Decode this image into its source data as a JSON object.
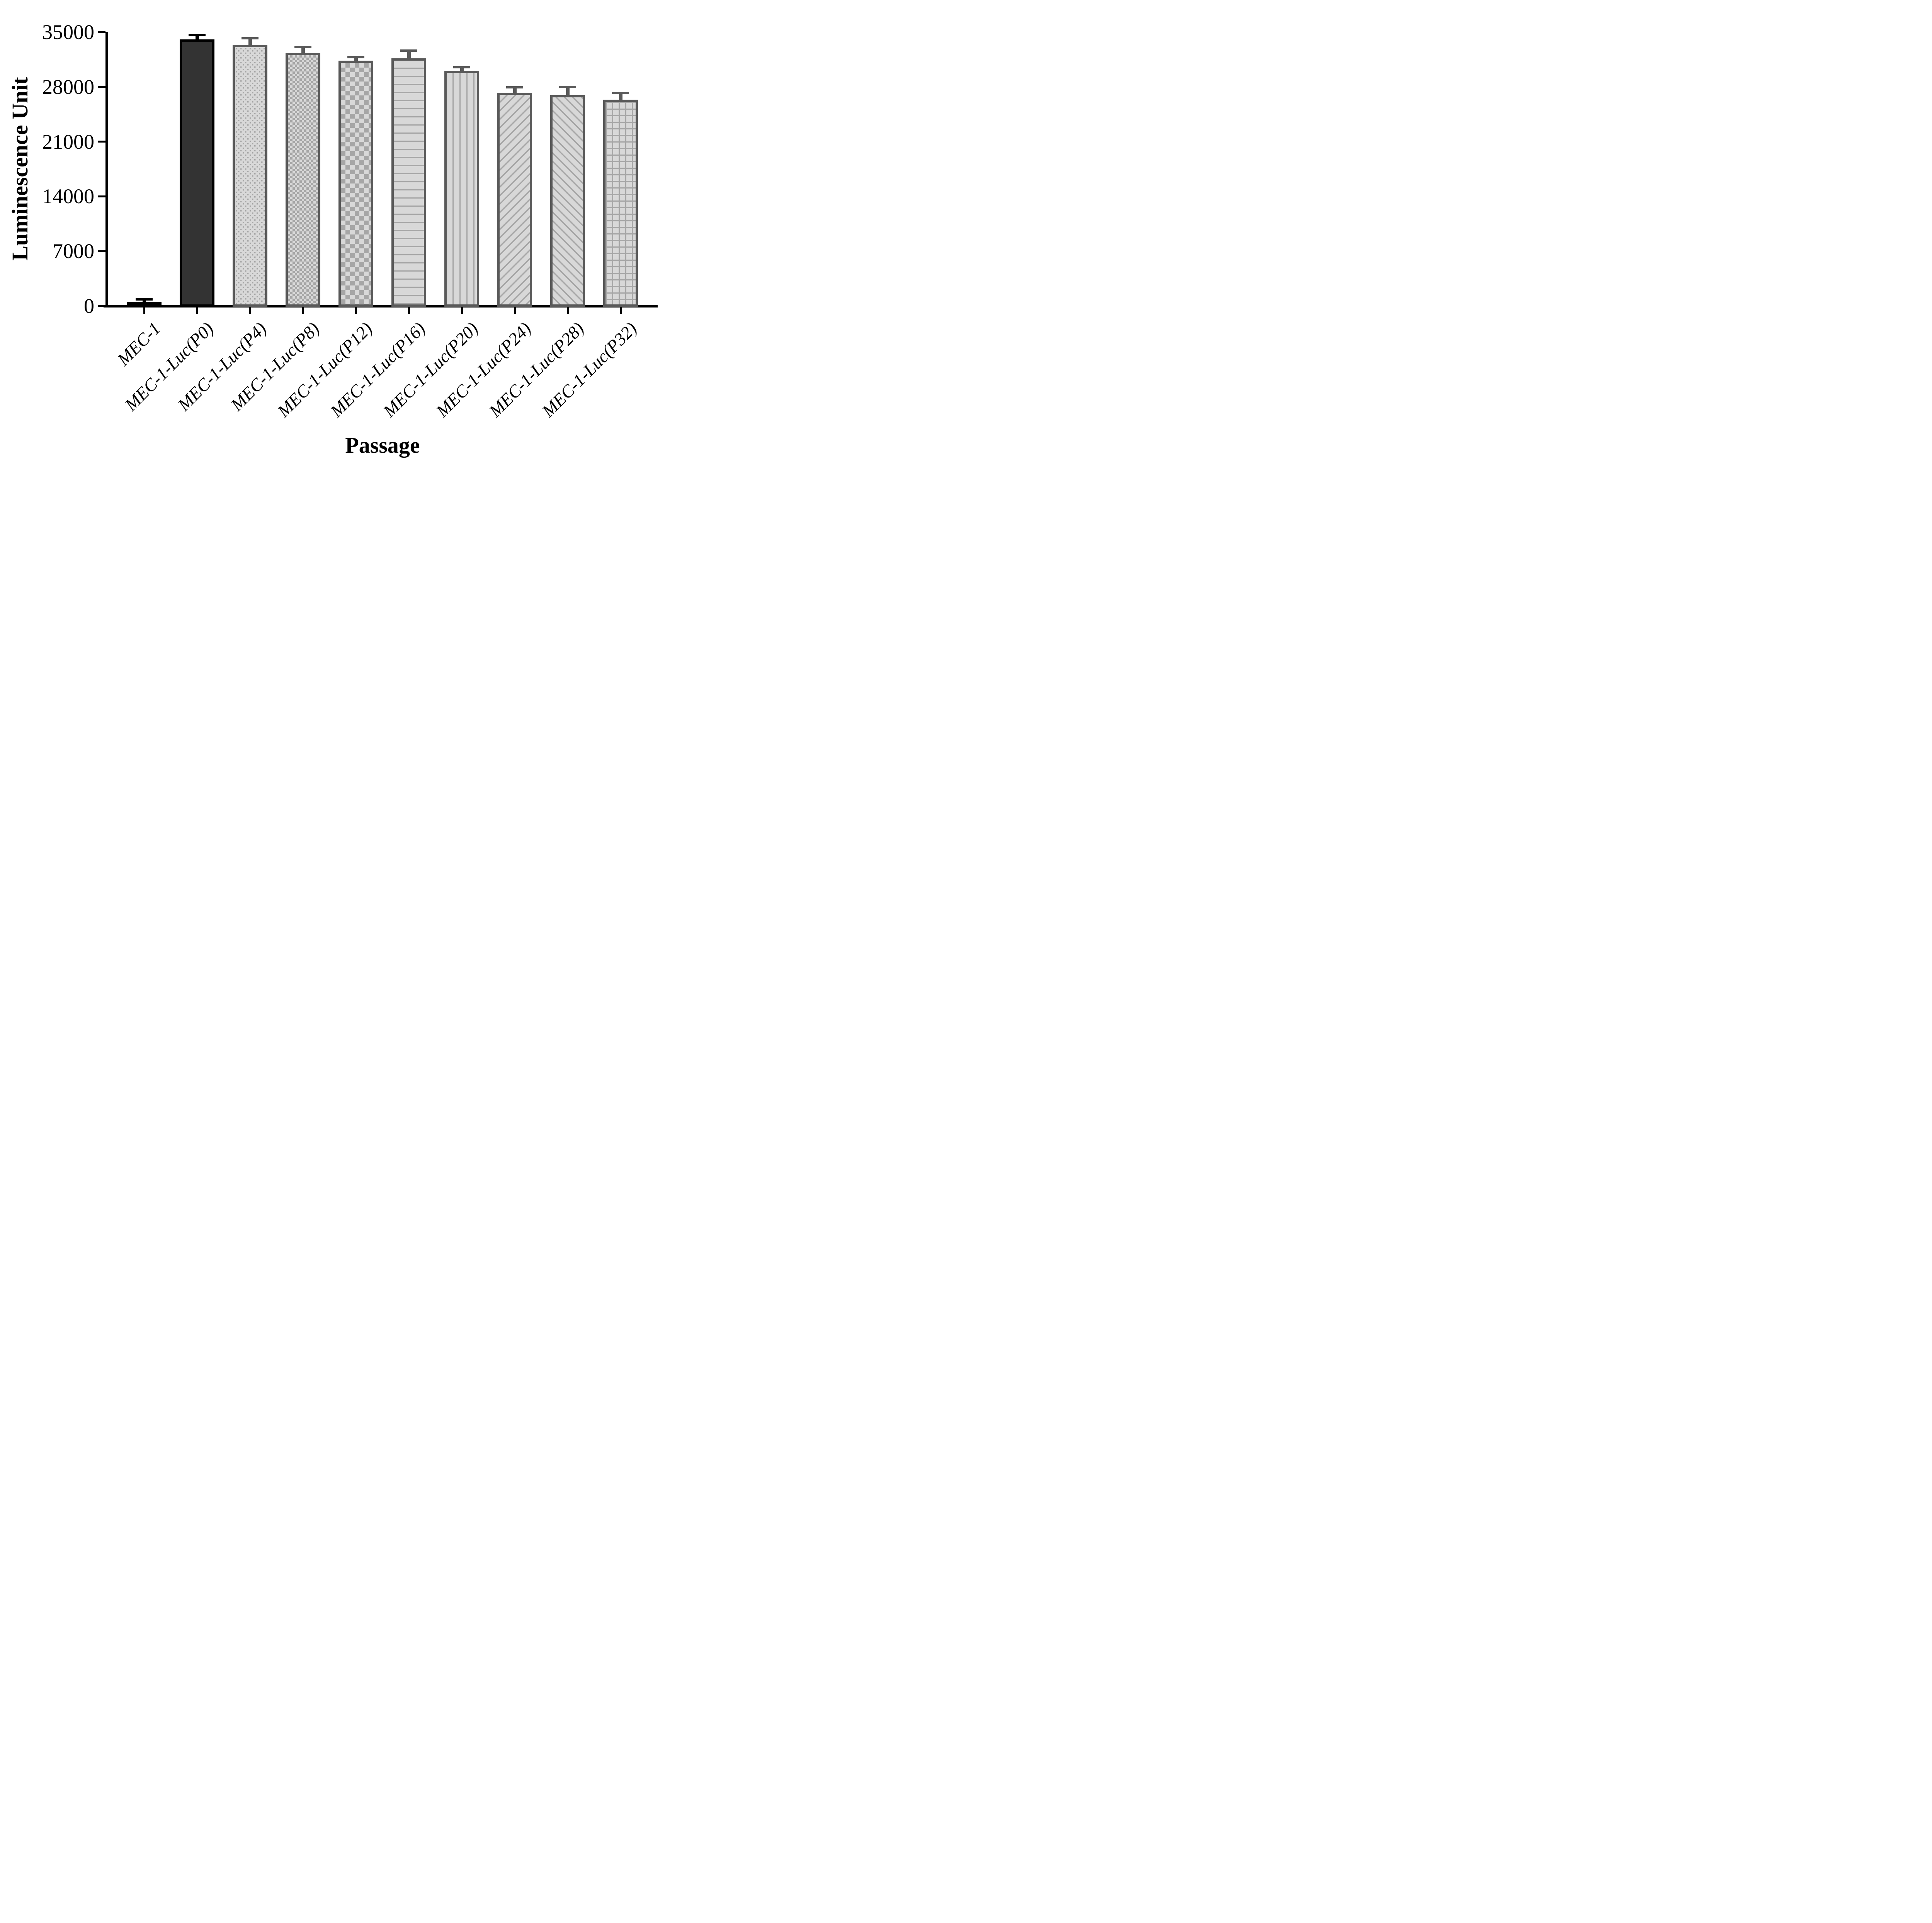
{
  "figure": {
    "background": "#ffffff"
  },
  "chart_data": {
    "type": "bar",
    "title": "",
    "xlabel": "Passage",
    "ylabel": "Luminescence Unit",
    "ylim": [
      0,
      35000
    ],
    "yticks": [
      0,
      7000,
      14000,
      21000,
      28000,
      35000
    ],
    "ytick_labels": [
      "0",
      "7000",
      "14000",
      "21000",
      "28000",
      "35000"
    ],
    "grid": false,
    "legend_position": "none",
    "categories": [
      "MEC-1",
      "MEC-1-Luc(P0)",
      "MEC-1-Luc(P4)",
      "MEC-1-Luc(P8)",
      "MEC-1-Luc(P12)",
      "MEC-1-Luc(P16)",
      "MEC-1-Luc(P20)",
      "MEC-1-Luc(P24)",
      "MEC-1-Luc(P28)",
      "MEC-1-Luc(P32)"
    ],
    "series": [
      {
        "name": "Luminescence Unit",
        "values": [
          400,
          33900,
          33200,
          32200,
          31200,
          31500,
          29900,
          27100,
          26800,
          26200
        ],
        "errors": [
          150,
          400,
          700,
          600,
          300,
          850,
          300,
          550,
          900,
          700
        ],
        "error_style": "upper-cap",
        "patterns": [
          "solid-black",
          "solid-dark",
          "dots",
          "checker-small",
          "checker-large",
          "hlines",
          "vlines",
          "diag-up",
          "diag-down",
          "grid"
        ],
        "edge_colors": [
          "#000000",
          "#000000",
          "#595959",
          "#595959",
          "#595959",
          "#595959",
          "#595959",
          "#595959",
          "#595959",
          "#595959"
        ]
      }
    ]
  },
  "colors": {
    "black": "#000000",
    "dark_bar_fill": "#333333",
    "pattern_gray": "#a6a6a6",
    "light_fill": "#d8d8d8",
    "border_gray": "#595959",
    "background": "#ffffff"
  }
}
